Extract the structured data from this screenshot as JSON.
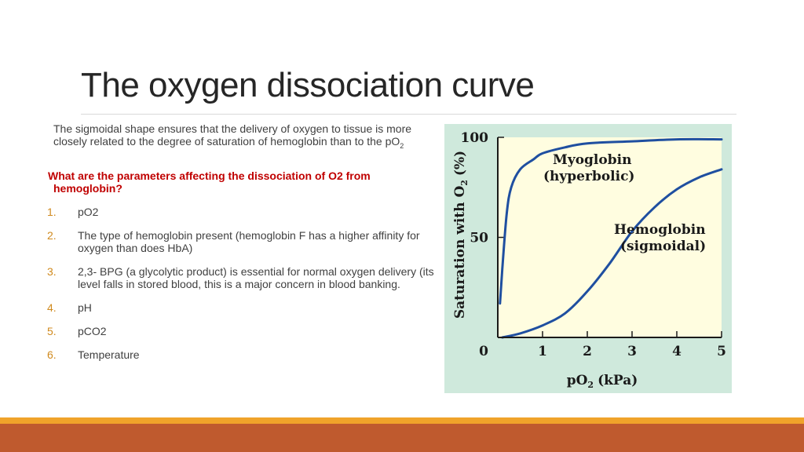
{
  "slide": {
    "title": "The oxygen dissociation curve",
    "intro_main": "The sigmoidal shape ensures that the delivery of oxygen to tissue is more closely related to the degree of saturation of hemoglobin than to the pO",
    "intro_sub": "2",
    "question_line1": "What are the parameters affecting the dissociation of O2 from",
    "question_line2": "hemoglobin?",
    "items": [
      {
        "num": "1.",
        "text": "pO2"
      },
      {
        "num": "2.",
        "text": "The type of hemoglobin present (hemoglobin F has a higher affinity for oxygen than does HbA)"
      },
      {
        "num": "3.",
        "text": "2,3- BPG (a glycolytic product) is essential for normal oxygen delivery (its level falls in stored blood, this is a major concern in blood banking."
      },
      {
        "num": "4.",
        "text": "pH"
      },
      {
        "num": "5.",
        "text": "pCO2"
      },
      {
        "num": "6.",
        "text": "Temperature"
      }
    ],
    "colors": {
      "title": "#262626",
      "question": "#c00000",
      "list_number": "#d08a1e",
      "chart_outer_bg": "#cfe9dc",
      "chart_plot_bg": "#fffde0",
      "curve": "#1f4fa0",
      "footer_orange": "#f0a32a",
      "footer_rust": "#bf5a2e"
    }
  },
  "chart_data": {
    "type": "line",
    "xlabel_main": "pO",
    "xlabel_sub": "2",
    "xlabel_unit": "(kPa)",
    "ylabel_main": "Saturation with O",
    "ylabel_sub": "2",
    "ylabel_unit": "(%)",
    "xlim": [
      0,
      5
    ],
    "ylim": [
      0,
      100
    ],
    "x_ticks": [
      0,
      1,
      2,
      3,
      4,
      5
    ],
    "x_tick_labels": [
      "0",
      "1",
      "2",
      "3",
      "4",
      "5"
    ],
    "y_ticks": [
      0,
      50,
      100
    ],
    "y_tick_labels": [
      "0",
      "50",
      "100"
    ],
    "grid": false,
    "series": [
      {
        "name": "Myoglobin",
        "annotation_line1": "Myoglobin",
        "annotation_line2": "(hyperbolic)",
        "shape": "hyperbolic",
        "x": [
          0.05,
          0.1,
          0.2,
          0.3,
          0.5,
          0.8,
          1.0,
          1.5,
          2.0,
          3.0,
          4.0,
          5.0
        ],
        "y": [
          17,
          34,
          62,
          75,
          84,
          89,
          92,
          95,
          97,
          98,
          99,
          99
        ]
      },
      {
        "name": "Hemoglobin",
        "annotation_line1": "Hemoglobin",
        "annotation_line2": "(sigmoidal)",
        "shape": "sigmoidal",
        "x": [
          0.1,
          0.5,
          1.0,
          1.5,
          2.0,
          2.5,
          3.0,
          3.5,
          4.0,
          4.5,
          5.0
        ],
        "y": [
          0,
          2,
          6,
          12,
          23,
          37,
          53,
          65,
          74,
          80,
          84
        ]
      }
    ]
  }
}
